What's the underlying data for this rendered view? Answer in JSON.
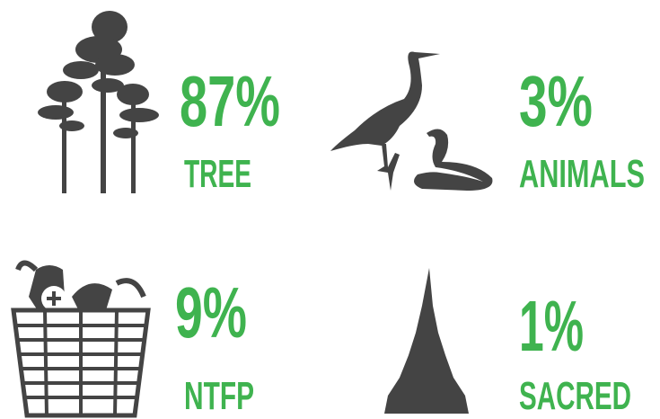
{
  "items": [
    {
      "percent": "87%",
      "label": "TREE"
    },
    {
      "percent": "3%",
      "label": "ANIMALS"
    },
    {
      "percent": "9%",
      "label": "NTFP"
    },
    {
      "percent": "1%",
      "label": "SACRED"
    }
  ]
}
